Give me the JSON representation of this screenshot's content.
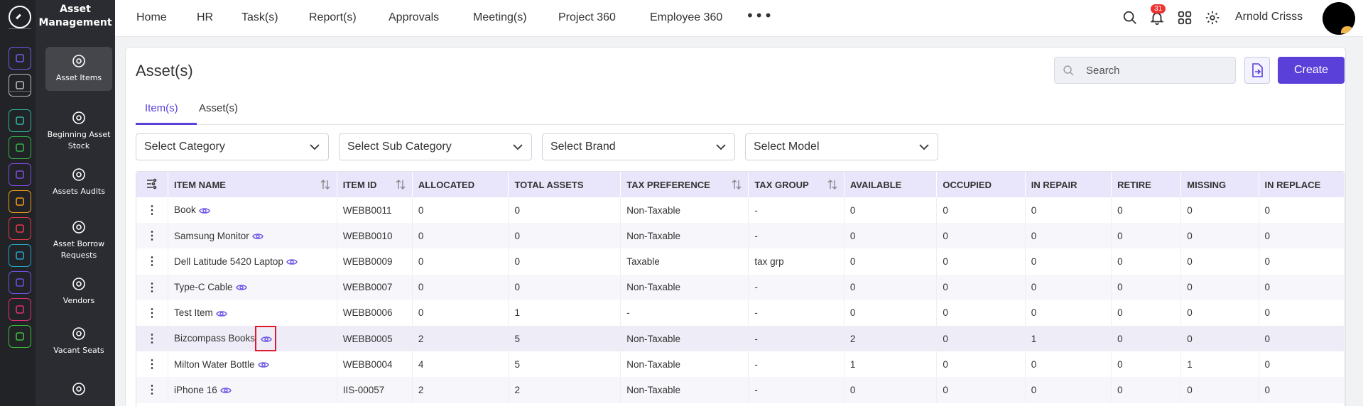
{
  "app": {
    "module_title": "Asset Management"
  },
  "rail": {
    "items": [
      {
        "icon": "home-icon",
        "color": "#6e5be8"
      },
      {
        "icon": "pin-icon",
        "color": "#b9babe"
      },
      {
        "icon": "org-chart-icon",
        "color": "#2fb3a1"
      },
      {
        "icon": "gift-icon",
        "color": "#33b24a"
      },
      {
        "icon": "briefcase-icon",
        "color": "#7d4ce0"
      },
      {
        "icon": "hands-icon",
        "color": "#f29a1a"
      },
      {
        "icon": "target-icon",
        "color": "#e23a4a"
      },
      {
        "icon": "archive-icon",
        "color": "#23a6c9"
      },
      {
        "icon": "layers-icon",
        "color": "#6e4fe0"
      },
      {
        "icon": "monitor-icon",
        "color": "#e0307a"
      },
      {
        "icon": "document-icon",
        "color": "#3cbf3a"
      }
    ]
  },
  "sidebar": {
    "items": [
      {
        "label": "Asset Items",
        "icon": "globe-icon"
      },
      {
        "label": "Beginning Asset Stock",
        "icon": "gear-icon"
      },
      {
        "label": "Assets Audits",
        "icon": "audit-icon"
      },
      {
        "label": "Asset Borrow Requests",
        "icon": "handshake-icon"
      },
      {
        "label": "Vendors",
        "icon": "gear-icon"
      },
      {
        "label": "Vacant Seats",
        "icon": "seat-icon"
      },
      {
        "label": "",
        "icon": "gear-icon"
      }
    ]
  },
  "topnav": {
    "items": [
      "Home",
      "HR",
      "Task(s)",
      "Report(s)",
      "Approvals",
      "Meeting(s)",
      "Project 360",
      "Employee 360"
    ],
    "more": "•••",
    "notification_count": "31",
    "username": "Arnold Crisss"
  },
  "page": {
    "title": "Asset(s)",
    "search_placeholder": "Search",
    "create_label": "Create",
    "tabs": [
      "Item(s)",
      "Asset(s)"
    ],
    "filters": [
      "Select Category",
      "Select Sub Category",
      "Select Brand",
      "Select Model"
    ]
  },
  "table": {
    "columns": [
      "ITEM NAME",
      "ITEM ID",
      "ALLOCATED",
      "TOTAL ASSETS",
      "TAX PREFERENCE",
      "TAX GROUP",
      "AVAILABLE",
      "OCCUPIED",
      "IN REPAIR",
      "RETIRE",
      "MISSING",
      "IN REPLACE"
    ],
    "rows": [
      [
        "Book",
        "WEBB0011",
        "0",
        "0",
        "Non-Taxable",
        "-",
        "0",
        "0",
        "0",
        "0",
        "0",
        "0"
      ],
      [
        "Samsung Monitor",
        "WEBB0010",
        "0",
        "0",
        "Non-Taxable",
        "-",
        "0",
        "0",
        "0",
        "0",
        "0",
        "0"
      ],
      [
        "Dell Latitude 5420 Laptop",
        "WEBB0009",
        "0",
        "0",
        "Taxable",
        "tax grp",
        "0",
        "0",
        "0",
        "0",
        "0",
        "0"
      ],
      [
        "Type-C Cable",
        "WEBB0007",
        "0",
        "0",
        "Non-Taxable",
        "-",
        "0",
        "0",
        "0",
        "0",
        "0",
        "0"
      ],
      [
        "Test Item",
        "WEBB0006",
        "0",
        "1",
        "-",
        "-",
        "0",
        "0",
        "0",
        "0",
        "0",
        "0"
      ],
      [
        "Bizcompass Books",
        "WEBB0005",
        "2",
        "5",
        "Non-Taxable",
        "-",
        "2",
        "0",
        "1",
        "0",
        "0",
        "0"
      ],
      [
        "Milton Water Bottle",
        "WEBB0004",
        "4",
        "5",
        "Non-Taxable",
        "-",
        "1",
        "0",
        "0",
        "0",
        "1",
        "0"
      ],
      [
        "iPhone 16",
        "IIS-00057",
        "2",
        "2",
        "Non-Taxable",
        "-",
        "0",
        "0",
        "0",
        "0",
        "0",
        "0"
      ]
    ]
  },
  "colors": {
    "accent": "#5b3fd9",
    "highlight_box": "#e0192e"
  }
}
